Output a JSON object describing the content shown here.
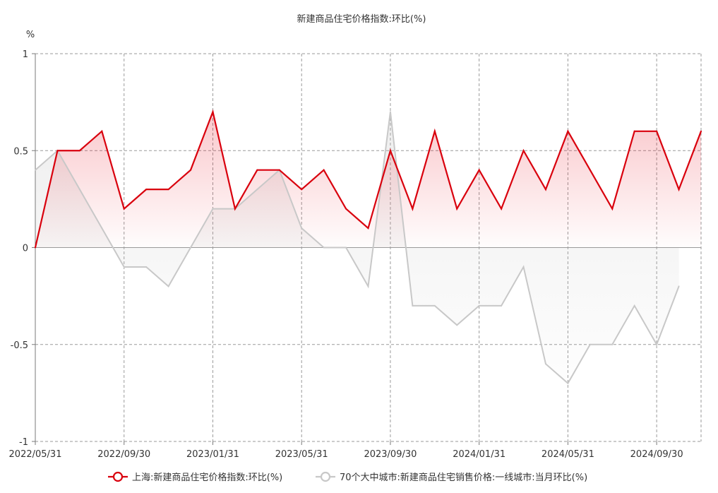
{
  "chart_data": {
    "type": "line",
    "title": "新建商品住宅价格指数:环比(%)",
    "y_unit": "%",
    "ylim": [
      -1,
      1
    ],
    "y_ticks": [
      1,
      0.5,
      0,
      -0.5,
      -1
    ],
    "y_tick_labels": [
      "1",
      "0.5",
      "0",
      "-0.5",
      "-1"
    ],
    "x_tick_labels": [
      "2022/05/31",
      "2022/09/30",
      "2023/01/31",
      "2023/05/31",
      "2023/09/30",
      "2024/01/31",
      "2024/05/31",
      "2024/09/30"
    ],
    "x_tick_indices": [
      0,
      4,
      8,
      12,
      16,
      20,
      24,
      28
    ],
    "n_points": 31,
    "grid": true,
    "legend_position": "bottom",
    "series": [
      {
        "name": "上海:新建商品住宅价格指数:环比(%)",
        "color": "#d9000d",
        "values": [
          0,
          0.5,
          0.5,
          0.6,
          0.2,
          0.3,
          0.3,
          0.4,
          0.7,
          0.2,
          0.4,
          0.4,
          0.3,
          0.4,
          0.2,
          0.1,
          0.5,
          0.2,
          0.6,
          0.2,
          0.4,
          0.2,
          0.5,
          0.3,
          0.6,
          0.4,
          0.2,
          0.6,
          0.6,
          0.3,
          0.6
        ]
      },
      {
        "name": "70个大中城市:新建商品住宅销售价格:一线城市:当月环比(%)",
        "color": "#c8c8c8",
        "values": [
          0.4,
          0.5,
          0.3,
          0.1,
          -0.1,
          -0.1,
          -0.2,
          0.0,
          0.2,
          0.2,
          0.3,
          0.4,
          0.1,
          0.0,
          0.0,
          -0.2,
          0.7,
          -0.3,
          -0.3,
          -0.4,
          -0.3,
          -0.3,
          -0.1,
          -0.6,
          -0.7,
          -0.5,
          -0.5,
          -0.3,
          -0.5,
          -0.2,
          null
        ]
      }
    ]
  }
}
